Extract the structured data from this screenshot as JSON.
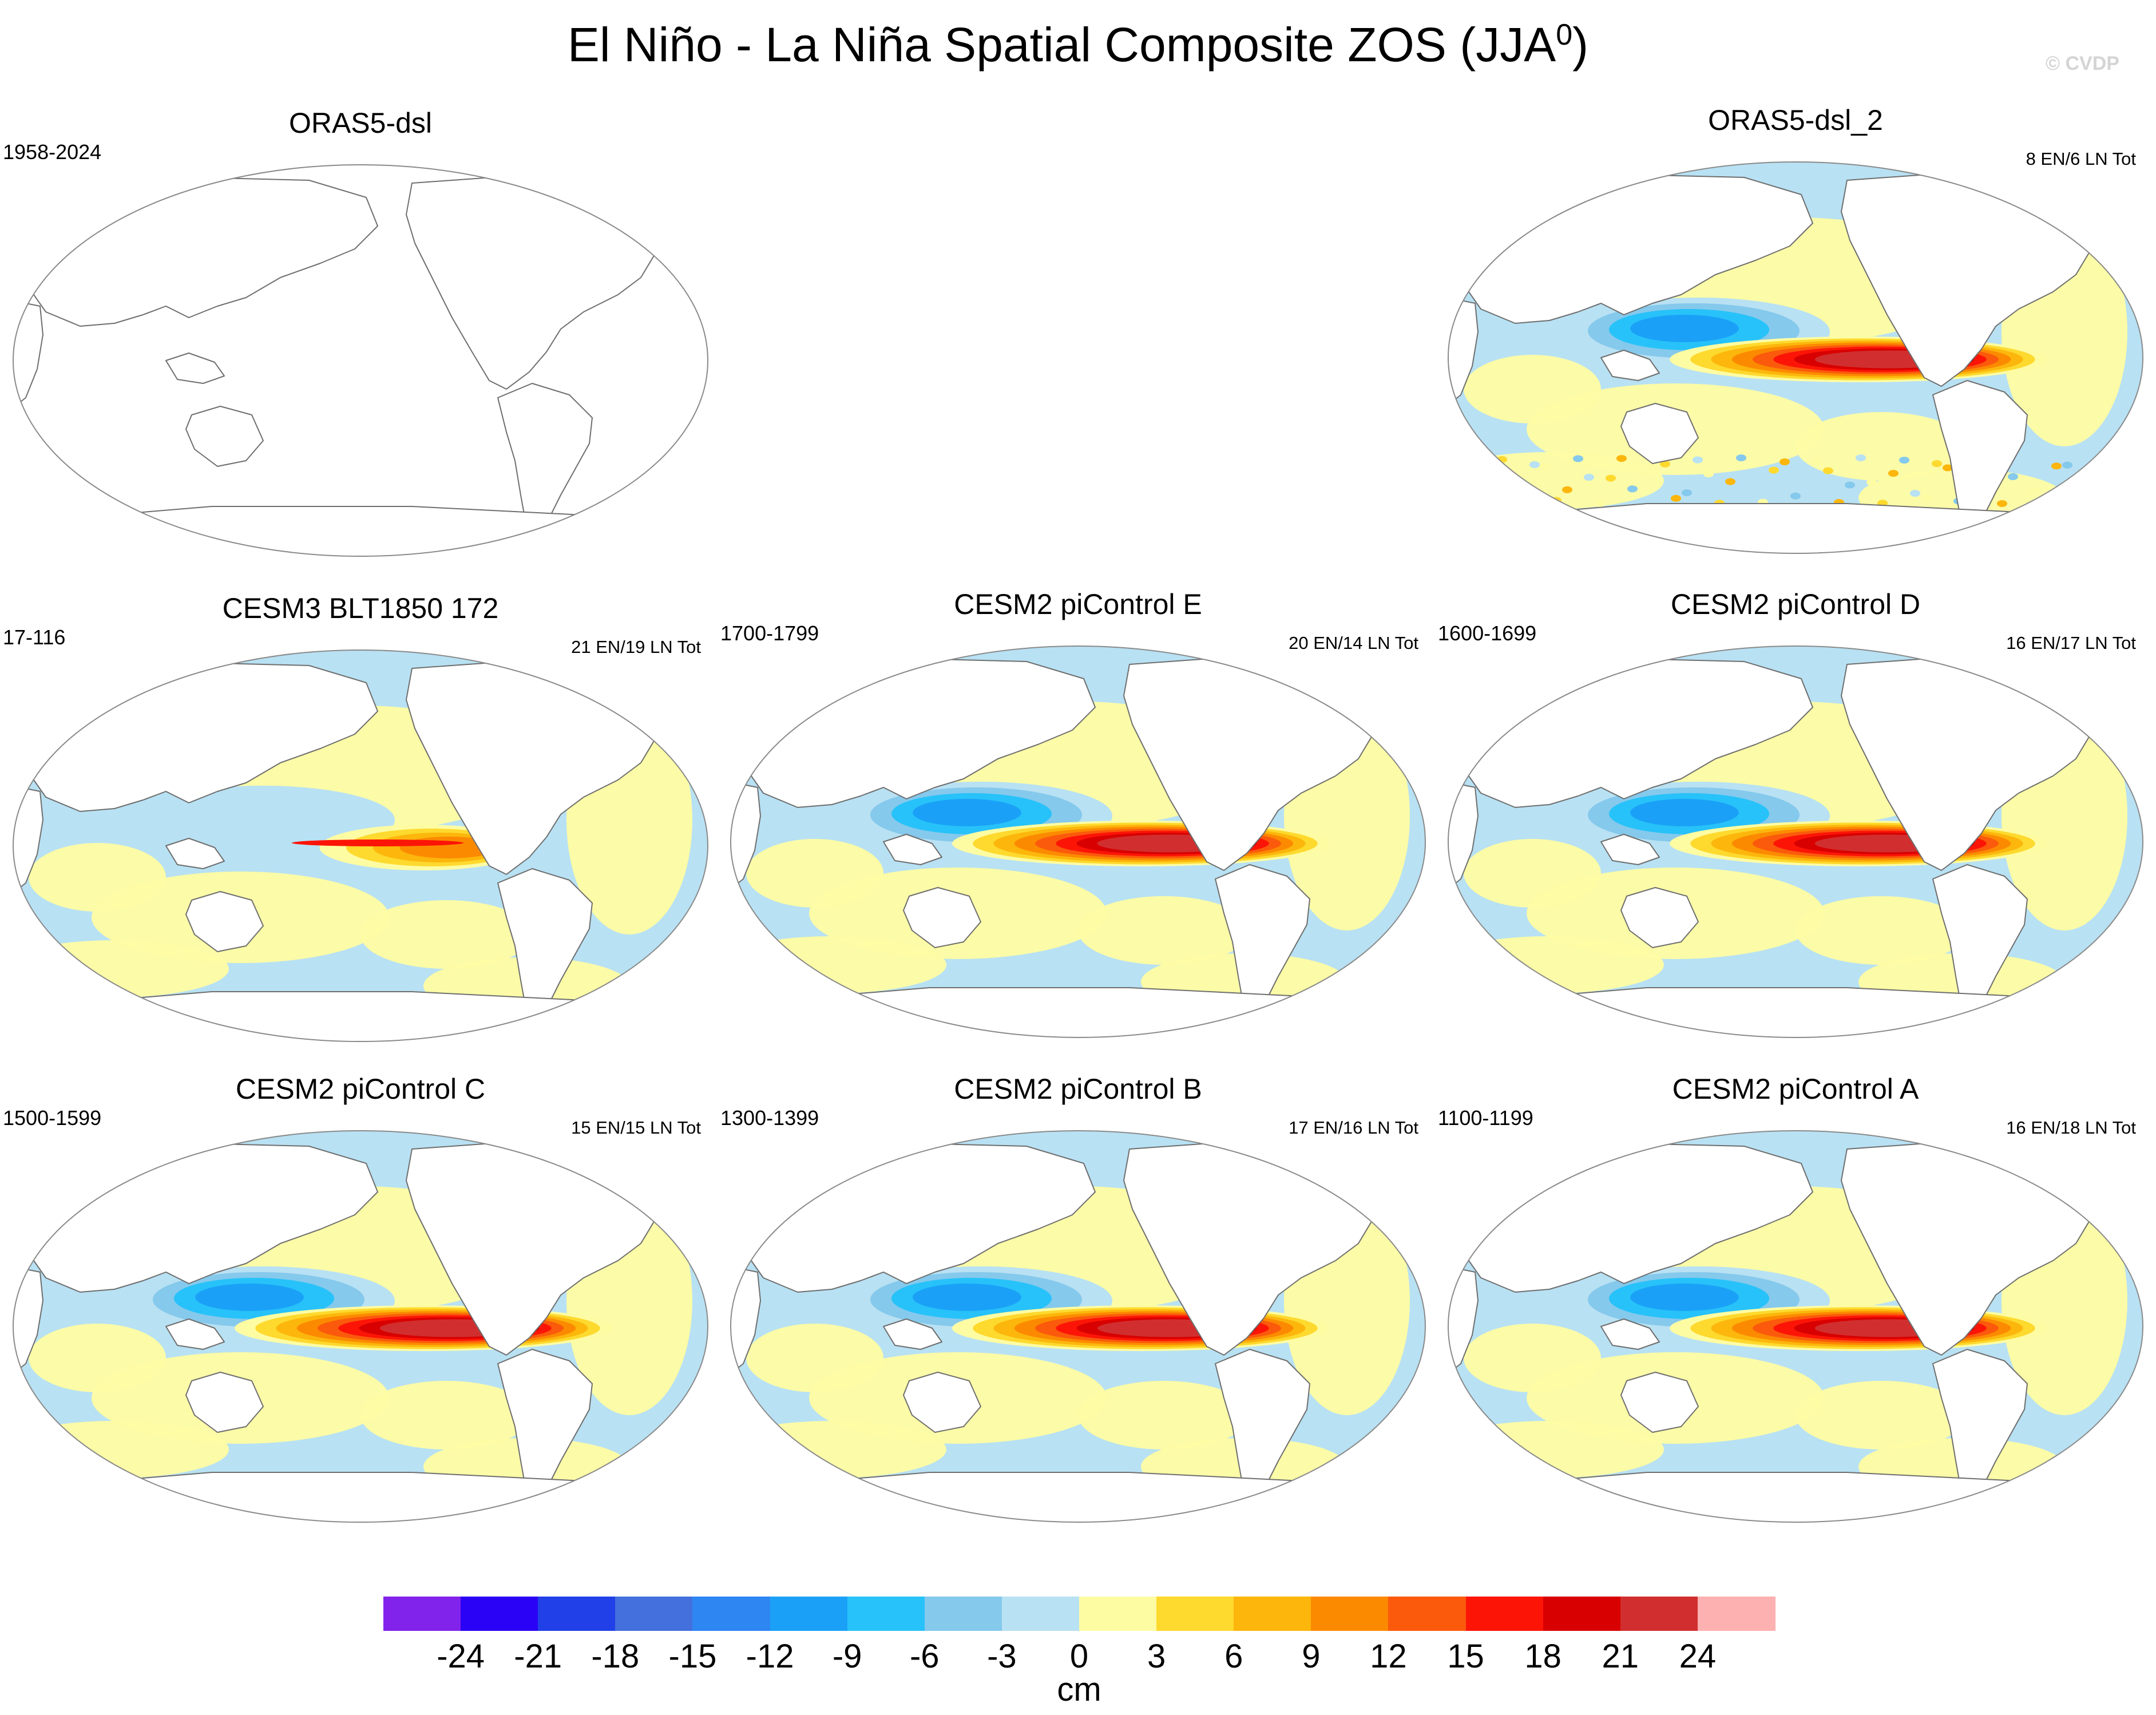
{
  "figure": {
    "title": "El Niño - La Niña Spatial Composite ZOS (JJA",
    "title_superscript": "0",
    "title_suffix": ")",
    "watermark": "© CVDP"
  },
  "panels": [
    {
      "title": "ORAS5-dsl",
      "period": "1958-2024",
      "counts": "",
      "filled": false
    },
    {
      "title": "ORAS5-dsl_2",
      "period": "",
      "counts": "8 EN/6 LN Tot",
      "filled": true,
      "pattern": "obs"
    },
    {
      "title": "CESM3 BLT1850 172",
      "period": "17-116",
      "counts": "21 EN/19 LN Tot",
      "filled": true,
      "pattern": "weak"
    },
    {
      "title": "CESM2 piControl E",
      "period": "1700-1799",
      "counts": "20 EN/14 LN Tot",
      "filled": true,
      "pattern": "strong"
    },
    {
      "title": "CESM2 piControl D",
      "period": "1600-1699",
      "counts": "16 EN/17 LN Tot",
      "filled": true,
      "pattern": "strong"
    },
    {
      "title": "CESM2 piControl C",
      "period": "1500-1599",
      "counts": "15 EN/15 LN Tot",
      "filled": true,
      "pattern": "strong"
    },
    {
      "title": "CESM2 piControl B",
      "period": "1300-1399",
      "counts": "17 EN/16 LN Tot",
      "filled": true,
      "pattern": "strong"
    },
    {
      "title": "CESM2 piControl A",
      "period": "1100-1199",
      "counts": "16 EN/18 LN Tot",
      "filled": true,
      "pattern": "strong"
    }
  ],
  "colorbar": {
    "units": "cm",
    "ticks": [
      "-24",
      "-21",
      "-18",
      "-15",
      "-12",
      "-9",
      "-6",
      "-3",
      "0",
      "3",
      "6",
      "9",
      "12",
      "15",
      "18",
      "21",
      "24"
    ],
    "colors": [
      "#8223eb",
      "#2a02f5",
      "#2140e8",
      "#4470dd",
      "#2e86f3",
      "#1aa1f7",
      "#27c2f9",
      "#85c9ec",
      "#b8e1f3",
      "#fefca3",
      "#fed92e",
      "#fcb60c",
      "#fc8a00",
      "#fb5a0c",
      "#fc1507",
      "#d80000",
      "#d12f2f",
      "#fdb1b1"
    ]
  }
}
